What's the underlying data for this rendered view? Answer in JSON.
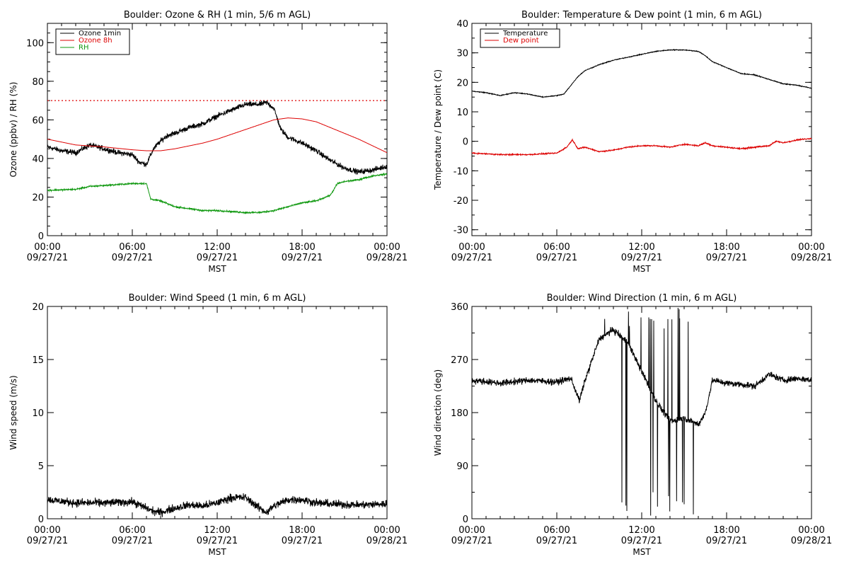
{
  "colors": {
    "black": "#000000",
    "red": "#dd0000",
    "green": "#119911",
    "background": "#ffffff"
  },
  "x_axis": {
    "ticks": [
      {
        "time": "00:00",
        "date": "09/27/21",
        "hour": 0
      },
      {
        "time": "06:00",
        "date": "09/27/21",
        "hour": 6
      },
      {
        "time": "12:00",
        "date": "09/27/21",
        "hour": 12
      },
      {
        "time": "18:00",
        "date": "09/27/21",
        "hour": 18
      },
      {
        "time": "00:00",
        "date": "09/28/21",
        "hour": 24
      }
    ],
    "label": "MST"
  },
  "chart_data": [
    {
      "type": "line",
      "title": "Boulder: Ozone & RH (1 min, 5/6 m AGL)",
      "xlabel": "MST",
      "ylabel": "Ozone (ppbv) / RH (%)",
      "xlim": [
        0,
        24
      ],
      "ylim": [
        0,
        110
      ],
      "yticks": [
        0,
        20,
        40,
        60,
        80,
        100
      ],
      "legend_position": "top-left",
      "reference_line": {
        "y": 70,
        "style": "dotted",
        "color": "#dd0000"
      },
      "series": [
        {
          "name": "Ozone 1min",
          "color": "#000000",
          "noise": 2.0,
          "points": [
            [
              0,
              46
            ],
            [
              1,
              44
            ],
            [
              2,
              43
            ],
            [
              3,
              47
            ],
            [
              4,
              45
            ],
            [
              5,
              43
            ],
            [
              6,
              42
            ],
            [
              6.5,
              38
            ],
            [
              7,
              37
            ],
            [
              7.5,
              45
            ],
            [
              8,
              49
            ],
            [
              8.5,
              52
            ],
            [
              9,
              53
            ],
            [
              10,
              56
            ],
            [
              11,
              58
            ],
            [
              12,
              62
            ],
            [
              13,
              65
            ],
            [
              14,
              68
            ],
            [
              15,
              68
            ],
            [
              15.5,
              69
            ],
            [
              16,
              66
            ],
            [
              16.5,
              55
            ],
            [
              17,
              51
            ],
            [
              18,
              48
            ],
            [
              19,
              44
            ],
            [
              20,
              39
            ],
            [
              21,
              35
            ],
            [
              22,
              33
            ],
            [
              23,
              34
            ],
            [
              24,
              36
            ]
          ]
        },
        {
          "name": "Ozone 8h",
          "color": "#dd0000",
          "noise": 0,
          "points": [
            [
              0,
              50
            ],
            [
              2,
              47
            ],
            [
              4,
              46
            ],
            [
              6,
              44.5
            ],
            [
              7,
              44
            ],
            [
              8,
              44
            ],
            [
              9,
              45
            ],
            [
              10,
              46.5
            ],
            [
              11,
              48
            ],
            [
              12,
              50
            ],
            [
              13,
              52.5
            ],
            [
              14,
              55
            ],
            [
              15,
              57.5
            ],
            [
              16,
              60
            ],
            [
              17,
              61
            ],
            [
              18,
              60.5
            ],
            [
              19,
              59
            ],
            [
              20,
              56
            ],
            [
              21,
              53
            ],
            [
              22,
              50
            ],
            [
              23,
              46.5
            ],
            [
              24,
              43
            ]
          ]
        },
        {
          "name": "RH",
          "color": "#119911",
          "noise": 0.6,
          "points": [
            [
              0,
              23.5
            ],
            [
              2,
              24
            ],
            [
              3,
              25.5
            ],
            [
              4,
              26
            ],
            [
              5,
              26.5
            ],
            [
              6,
              27
            ],
            [
              7,
              27
            ],
            [
              7.3,
              19
            ],
            [
              8,
              18
            ],
            [
              9,
              15
            ],
            [
              10,
              14
            ],
            [
              11,
              13
            ],
            [
              12,
              13
            ],
            [
              13,
              12.5
            ],
            [
              14,
              12
            ],
            [
              15,
              12
            ],
            [
              16,
              13
            ],
            [
              17,
              15
            ],
            [
              18,
              17
            ],
            [
              19,
              18
            ],
            [
              20,
              21
            ],
            [
              20.5,
              27
            ],
            [
              21,
              28
            ],
            [
              22,
              29
            ],
            [
              23,
              31
            ],
            [
              24,
              32
            ]
          ]
        }
      ]
    },
    {
      "type": "line",
      "title": "Boulder: Temperature & Dew point (1 min, 6 m AGL)",
      "xlabel": "MST",
      "ylabel": "Temperature / Dew point (C)",
      "xlim": [
        0,
        24
      ],
      "ylim": [
        -32,
        40
      ],
      "yticks": [
        -30,
        -20,
        -10,
        0,
        10,
        20,
        30,
        40
      ],
      "legend_position": "top-left",
      "series": [
        {
          "name": "Temperature",
          "color": "#000000",
          "noise": 0.2,
          "points": [
            [
              0,
              17
            ],
            [
              1,
              16.5
            ],
            [
              2,
              15.5
            ],
            [
              3,
              16.5
            ],
            [
              4,
              16
            ],
            [
              5,
              15
            ],
            [
              6,
              15.5
            ],
            [
              6.5,
              16
            ],
            [
              7,
              19
            ],
            [
              7.5,
              22
            ],
            [
              8,
              24
            ],
            [
              9,
              26
            ],
            [
              10,
              27.5
            ],
            [
              11,
              28.5
            ],
            [
              12,
              29.5
            ],
            [
              13,
              30.5
            ],
            [
              14,
              31
            ],
            [
              15,
              31
            ],
            [
              16,
              30.5
            ],
            [
              16.5,
              29
            ],
            [
              17,
              27
            ],
            [
              18,
              25
            ],
            [
              19,
              23
            ],
            [
              20,
              22.5
            ],
            [
              21,
              21
            ],
            [
              22,
              19.5
            ],
            [
              23,
              19
            ],
            [
              24,
              18
            ]
          ]
        },
        {
          "name": "Dew point",
          "color": "#dd0000",
          "noise": 0.3,
          "points": [
            [
              0,
              -4
            ],
            [
              2,
              -4.5
            ],
            [
              4,
              -4.5
            ],
            [
              6,
              -4
            ],
            [
              6.7,
              -2
            ],
            [
              7.1,
              0.5
            ],
            [
              7.5,
              -2.5
            ],
            [
              8,
              -2
            ],
            [
              9,
              -3.5
            ],
            [
              10,
              -3
            ],
            [
              11,
              -2
            ],
            [
              12,
              -1.5
            ],
            [
              13,
              -1.5
            ],
            [
              14,
              -2
            ],
            [
              15,
              -1
            ],
            [
              16,
              -1.5
            ],
            [
              16.5,
              -0.5
            ],
            [
              17,
              -1.5
            ],
            [
              18,
              -2
            ],
            [
              19,
              -2.5
            ],
            [
              20,
              -2
            ],
            [
              21,
              -1.5
            ],
            [
              21.5,
              0
            ],
            [
              22,
              -0.5
            ],
            [
              23,
              0.5
            ],
            [
              24,
              1
            ]
          ]
        }
      ]
    },
    {
      "type": "line",
      "title": "Boulder: Wind Speed (1 min, 6 m AGL)",
      "xlabel": "MST",
      "ylabel": "Wind speed (m/s)",
      "xlim": [
        0,
        24
      ],
      "ylim": [
        0,
        20
      ],
      "yticks": [
        0,
        5,
        10,
        15,
        20
      ],
      "series": [
        {
          "name": "",
          "color": "#000000",
          "noise": 0.55,
          "points": [
            [
              0,
              1.8
            ],
            [
              2,
              1.5
            ],
            [
              4,
              1.5
            ],
            [
              6,
              1.6
            ],
            [
              7,
              1.0
            ],
            [
              7.5,
              0.7
            ],
            [
              8,
              0.6
            ],
            [
              9,
              1.0
            ],
            [
              10,
              1.3
            ],
            [
              11,
              1.2
            ],
            [
              12,
              1.5
            ],
            [
              13,
              2.0
            ],
            [
              14,
              2.0
            ],
            [
              15,
              1.0
            ],
            [
              15.5,
              0.6
            ],
            [
              16,
              1.2
            ],
            [
              17,
              1.8
            ],
            [
              18,
              1.8
            ],
            [
              19,
              1.5
            ],
            [
              20,
              1.4
            ],
            [
              22,
              1.3
            ],
            [
              24,
              1.4
            ]
          ]
        }
      ]
    },
    {
      "type": "line",
      "title": "Boulder: Wind Direction (1 min, 6 m AGL)",
      "xlabel": "MST",
      "ylabel": "Wind direction (deg)",
      "xlim": [
        0,
        24
      ],
      "ylim": [
        0,
        360
      ],
      "yticks": [
        0,
        90,
        180,
        270,
        360
      ],
      "series": [
        {
          "name": "",
          "color": "#000000",
          "noise": 8,
          "points": [
            [
              0,
              235
            ],
            [
              2,
              230
            ],
            [
              4,
              235
            ],
            [
              6,
              232
            ],
            [
              7,
              238
            ],
            [
              7.6,
              200
            ],
            [
              8,
              235
            ],
            [
              8.5,
              270
            ],
            [
              9,
              305
            ],
            [
              10,
              320
            ],
            [
              11,
              300
            ],
            [
              12,
              250
            ],
            [
              13,
              200
            ],
            [
              14,
              165
            ],
            [
              15,
              170
            ],
            [
              16,
              160
            ],
            [
              16.5,
              180
            ],
            [
              17,
              235
            ],
            [
              18,
              230
            ],
            [
              19,
              228
            ],
            [
              20,
              225
            ],
            [
              21,
              245
            ],
            [
              22,
              235
            ],
            [
              23,
              238
            ],
            [
              24,
              235
            ]
          ],
          "spike_ranges": [
            [
              9.0,
              16.6
            ]
          ]
        }
      ]
    }
  ]
}
